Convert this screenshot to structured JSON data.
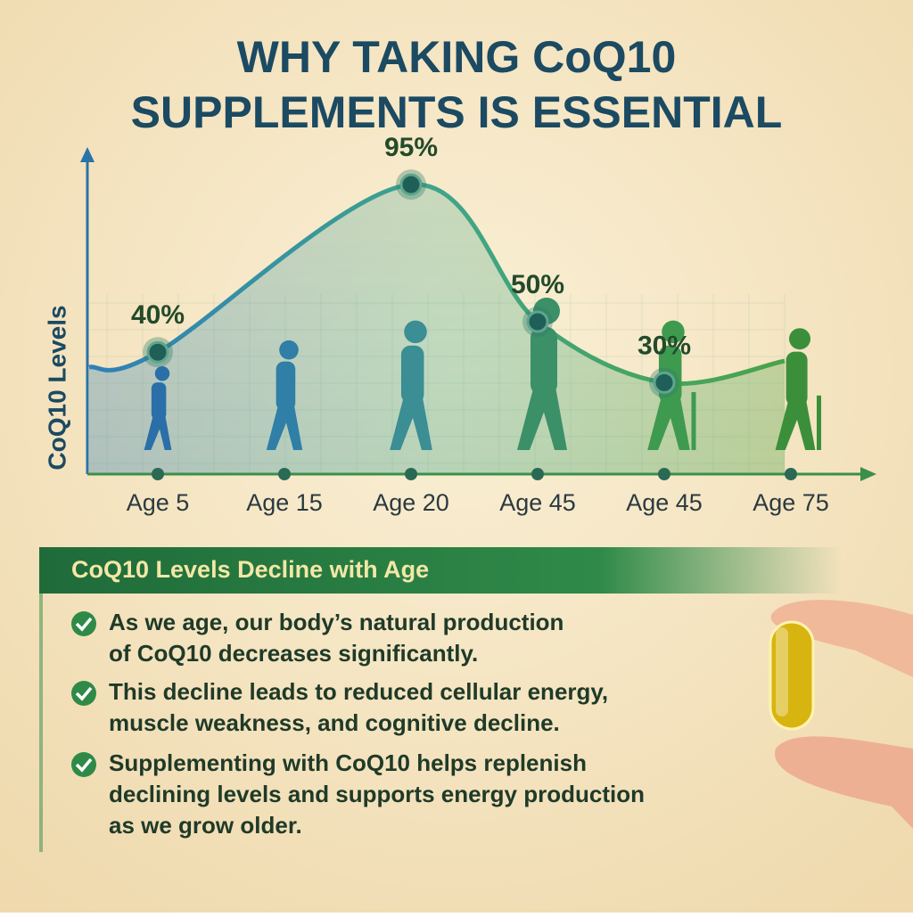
{
  "header": {
    "title_lines": [
      "WHY TAKING CoQ10",
      "SUPPLEMENTS IS ESSENTIAL"
    ]
  },
  "chart_data": {
    "type": "area",
    "y_label": "CoQ10 Levels",
    "categories": [
      "Age 5",
      "Age 15",
      "Age 20",
      "Age 45",
      "Age 45",
      "Age 75"
    ],
    "values": [
      40,
      null,
      95,
      50,
      30,
      null
    ],
    "value_labels": [
      "40%",
      null,
      "95%",
      "50%",
      "30%",
      null
    ],
    "ylim": [
      0,
      100
    ],
    "grid": true,
    "color": "#2e8b57"
  },
  "panel": {
    "title": "CoQ10 Levels Decline with Age",
    "bullets": [
      {
        "lines": [
          "As we age, our body’s natural production",
          "of CoQ10 decreases significantly."
        ]
      },
      {
        "lines": [
          "This decline leads to reduced cellular energy,",
          "muscle weakness, and cognitive decline."
        ]
      },
      {
        "lines": [
          "Supplementing with CoQ10 helps replenish",
          "declining levels and supports energy production",
          "as we grow older."
        ]
      }
    ]
  }
}
